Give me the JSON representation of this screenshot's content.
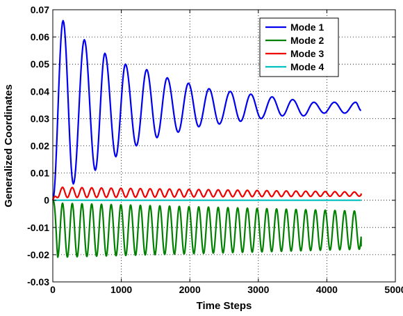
{
  "chart_data": {
    "type": "line",
    "title": "",
    "xlabel": "Time Steps",
    "ylabel": "Generalized Coordinates",
    "xlim": [
      0,
      5000
    ],
    "ylim": [
      -0.03,
      0.07
    ],
    "xticks": [
      0,
      1000,
      2000,
      3000,
      4000,
      5000
    ],
    "xtick_labels": [
      "0",
      "1000",
      "2000",
      "3000",
      "4000",
      "5000"
    ],
    "yticks": [
      -0.03,
      -0.02,
      -0.01,
      0,
      0.01,
      0.02,
      0.03,
      0.04,
      0.05,
      0.06,
      0.07
    ],
    "ytick_labels": [
      "-0.03",
      "-0.02",
      "-0.01",
      "0",
      "0.01",
      "0.02",
      "0.03",
      "0.04",
      "0.05",
      "0.06",
      "0.07"
    ],
    "grid": true,
    "legend_position": "top-right",
    "series": [
      {
        "name": "Mode 1",
        "color": "#0000ee",
        "x": [
          0,
          150,
          300,
          460,
          620,
          760,
          920,
          1060,
          1220,
          1370,
          1520,
          1670,
          1830,
          1980,
          2130,
          2280,
          2430,
          2590,
          2740,
          2890,
          3040,
          3200,
          3350,
          3500,
          3660,
          3810,
          3960,
          4110,
          4260,
          4420,
          4500
        ],
        "y": [
          0,
          0.066,
          0.006,
          0.059,
          0.011,
          0.054,
          0.016,
          0.05,
          0.02,
          0.048,
          0.023,
          0.045,
          0.025,
          0.043,
          0.027,
          0.041,
          0.028,
          0.04,
          0.029,
          0.039,
          0.03,
          0.038,
          0.031,
          0.037,
          0.031,
          0.036,
          0.032,
          0.036,
          0.032,
          0.036,
          0.033
        ]
      },
      {
        "name": "Mode 2",
        "color": "#008000",
        "oscillation": {
          "x_start": 0,
          "x_end": 4500,
          "period": 142,
          "min": -0.021,
          "max": -0.001,
          "final_value": -0.017,
          "min_end": -0.018,
          "max_end": -0.004
        }
      },
      {
        "name": "Mode 3",
        "color": "#ee0000",
        "oscillation": {
          "x_start": 0,
          "x_end": 4500,
          "period": 142,
          "min": 0.001,
          "max": 0.0048,
          "final_value": 0.0025,
          "min_end": 0.0015,
          "max_end": 0.003
        }
      },
      {
        "name": "Mode 4",
        "color": "#00bfbf",
        "x": [
          0,
          4500
        ],
        "y": [
          0,
          0
        ]
      }
    ]
  }
}
